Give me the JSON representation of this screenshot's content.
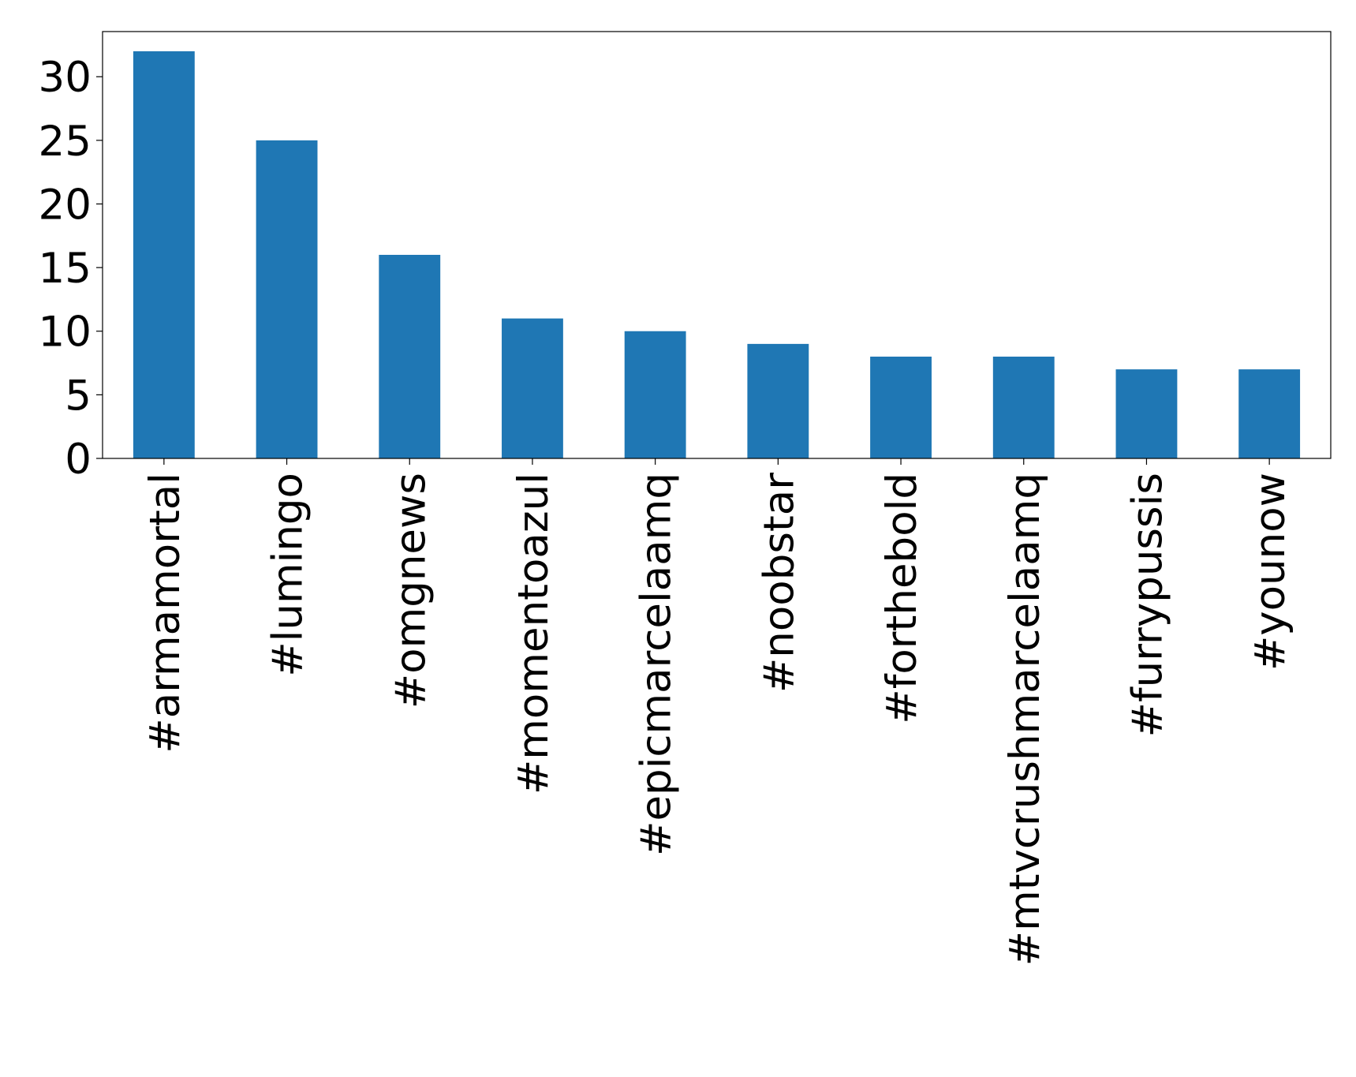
{
  "chart_data": {
    "type": "bar",
    "categories": [
      "#armamortal",
      "#lumingo",
      "#omgnews",
      "#momentoazul",
      "#epicmarcelaamq",
      "#noobstar",
      "#forthebold",
      "#mtvcrushmarcelaamq",
      "#furrypussis",
      "#younow"
    ],
    "values": [
      32,
      25,
      16,
      11,
      10,
      9,
      8,
      8,
      7,
      7
    ],
    "color": "#1f77b4",
    "ylim": [
      0,
      33.55
    ],
    "yticks": [
      0,
      5,
      10,
      15,
      20,
      25,
      30
    ],
    "grid": false
  }
}
